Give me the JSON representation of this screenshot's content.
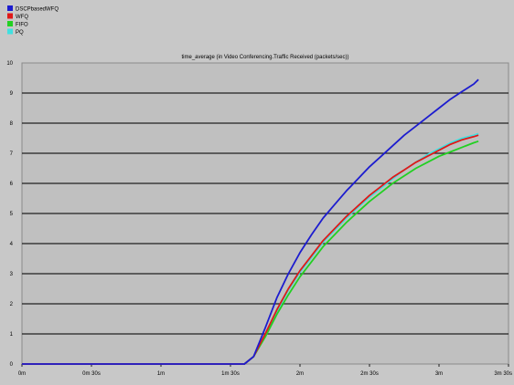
{
  "chart_data": {
    "type": "line",
    "title": "time_average (in Video Conferencing.Traffic Received (packets/sec))",
    "xlabel": "",
    "ylabel": "",
    "x_unit": "seconds",
    "xlim": [
      0,
      210
    ],
    "ylim": [
      0,
      10
    ],
    "x_ticks": [
      {
        "value": 0,
        "label": "0m"
      },
      {
        "value": 30,
        "label": "0m 30s"
      },
      {
        "value": 60,
        "label": "1m"
      },
      {
        "value": 90,
        "label": "1m 30s"
      },
      {
        "value": 120,
        "label": "2m"
      },
      {
        "value": 150,
        "label": "2m 30s"
      },
      {
        "value": 180,
        "label": "3m"
      },
      {
        "value": 210,
        "label": "3m 30s"
      }
    ],
    "y_ticks": [
      {
        "value": 0,
        "label": "0"
      },
      {
        "value": 1,
        "label": "1"
      },
      {
        "value": 2,
        "label": "2"
      },
      {
        "value": 3,
        "label": "3"
      },
      {
        "value": 4,
        "label": "4"
      },
      {
        "value": 5,
        "label": "5"
      },
      {
        "value": 6,
        "label": "6"
      },
      {
        "value": 7,
        "label": "7"
      },
      {
        "value": 8,
        "label": "8"
      },
      {
        "value": 9,
        "label": "9"
      },
      {
        "value": 10,
        "label": "10"
      }
    ],
    "grid": "horizontal",
    "legend_position": "top-left",
    "series": [
      {
        "name": "DSCPbasedWFQ",
        "color": "#1c1ccf",
        "points": [
          [
            0,
            0
          ],
          [
            96,
            0
          ],
          [
            100,
            0.25
          ],
          [
            105,
            1.2
          ],
          [
            110,
            2.2
          ],
          [
            115,
            3.0
          ],
          [
            120,
            3.7
          ],
          [
            125,
            4.3
          ],
          [
            130,
            4.85
          ],
          [
            135,
            5.3
          ],
          [
            140,
            5.75
          ],
          [
            145,
            6.15
          ],
          [
            150,
            6.55
          ],
          [
            155,
            6.9
          ],
          [
            160,
            7.25
          ],
          [
            165,
            7.6
          ],
          [
            170,
            7.9
          ],
          [
            175,
            8.2
          ],
          [
            180,
            8.5
          ],
          [
            185,
            8.8
          ],
          [
            190,
            9.05
          ],
          [
            195,
            9.3
          ],
          [
            197,
            9.45
          ]
        ]
      },
      {
        "name": "WFQ",
        "color": "#e01818",
        "points": [
          [
            0,
            0
          ],
          [
            96,
            0
          ],
          [
            100,
            0.25
          ],
          [
            105,
            1.0
          ],
          [
            110,
            1.8
          ],
          [
            115,
            2.5
          ],
          [
            120,
            3.1
          ],
          [
            125,
            3.6
          ],
          [
            130,
            4.1
          ],
          [
            135,
            4.5
          ],
          [
            140,
            4.9
          ],
          [
            145,
            5.25
          ],
          [
            150,
            5.6
          ],
          [
            155,
            5.9
          ],
          [
            160,
            6.2
          ],
          [
            165,
            6.45
          ],
          [
            170,
            6.7
          ],
          [
            175,
            6.9
          ],
          [
            180,
            7.1
          ],
          [
            185,
            7.3
          ],
          [
            190,
            7.45
          ],
          [
            195,
            7.55
          ],
          [
            197,
            7.6
          ]
        ]
      },
      {
        "name": "FIFO",
        "color": "#22d022",
        "points": [
          [
            0,
            0
          ],
          [
            96,
            0
          ],
          [
            100,
            0.25
          ],
          [
            105,
            0.9
          ],
          [
            110,
            1.65
          ],
          [
            115,
            2.3
          ],
          [
            120,
            2.9
          ],
          [
            125,
            3.4
          ],
          [
            130,
            3.9
          ],
          [
            135,
            4.3
          ],
          [
            140,
            4.7
          ],
          [
            145,
            5.05
          ],
          [
            150,
            5.4
          ],
          [
            155,
            5.7
          ],
          [
            160,
            6.0
          ],
          [
            165,
            6.25
          ],
          [
            170,
            6.5
          ],
          [
            175,
            6.7
          ],
          [
            180,
            6.9
          ],
          [
            185,
            7.05
          ],
          [
            190,
            7.2
          ],
          [
            195,
            7.35
          ],
          [
            197,
            7.4
          ]
        ]
      },
      {
        "name": "PQ",
        "color": "#40e0e0",
        "points": [
          [
            0,
            0
          ],
          [
            96,
            0
          ],
          [
            100,
            0.25
          ],
          [
            105,
            0.95
          ],
          [
            110,
            1.75
          ],
          [
            115,
            2.45
          ],
          [
            120,
            3.05
          ],
          [
            125,
            3.55
          ],
          [
            130,
            4.05
          ],
          [
            135,
            4.45
          ],
          [
            140,
            4.85
          ],
          [
            145,
            5.2
          ],
          [
            150,
            5.55
          ],
          [
            155,
            5.85
          ],
          [
            160,
            6.15
          ],
          [
            165,
            6.45
          ],
          [
            170,
            6.7
          ],
          [
            175,
            6.95
          ],
          [
            180,
            7.15
          ],
          [
            185,
            7.35
          ],
          [
            190,
            7.5
          ],
          [
            195,
            7.6
          ],
          [
            197,
            7.65
          ]
        ]
      }
    ]
  }
}
